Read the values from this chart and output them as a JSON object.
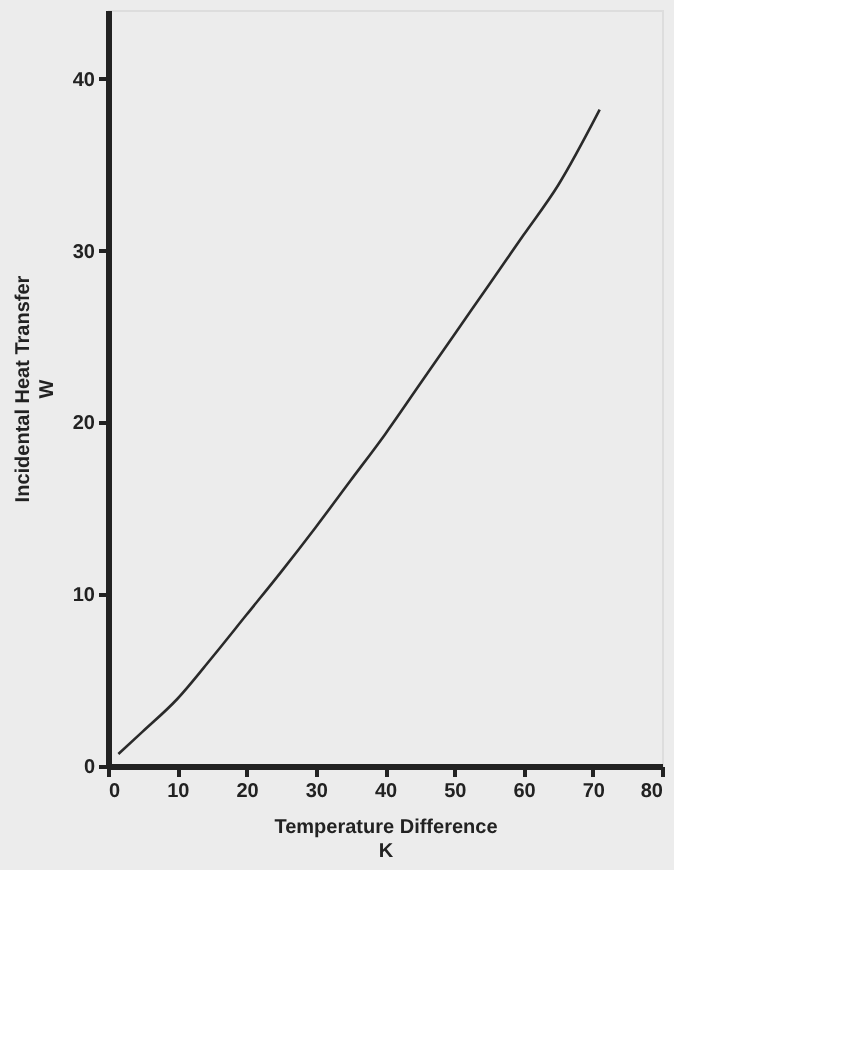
{
  "chart_data": {
    "type": "line",
    "xlabel": "Temperature Difference\nK",
    "ylabel": "Incidental Heat Transfer\nW",
    "x": [
      1.5,
      5,
      10,
      15,
      20,
      25,
      30,
      35,
      40,
      45,
      50,
      55,
      60,
      65,
      71
    ],
    "series": [
      {
        "color": "#2a2a2a",
        "values": [
          0.7,
          2.0,
          3.9,
          6.3,
          8.8,
          11.3,
          13.9,
          16.6,
          19.3,
          22.2,
          25.1,
          28.0,
          30.9,
          33.8,
          38.2
        ]
      }
    ],
    "xlim": [
      0,
      80
    ],
    "xticks": [
      0,
      10,
      20,
      30,
      40,
      50,
      60,
      70,
      80
    ],
    "ylim": [
      0,
      44
    ],
    "yticks": [
      0,
      10,
      20,
      30,
      40
    ],
    "grid": false,
    "marker": "none",
    "line_style": "solid"
  }
}
